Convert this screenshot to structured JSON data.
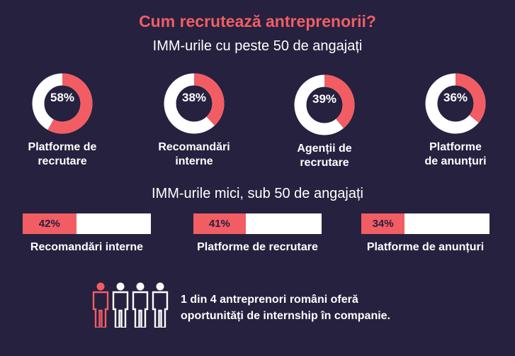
{
  "title": "Cum recrutează antreprenorii?",
  "section1": {
    "subtitle": "IMM-urile cu peste 50 de angajați",
    "items": [
      {
        "pct_label": "58%",
        "value": 58,
        "label_l1": "Platforme de",
        "label_l2": "recrutare"
      },
      {
        "pct_label": "38%",
        "value": 38,
        "label_l1": "Recomandări",
        "label_l2": "interne"
      },
      {
        "pct_label": "39%",
        "value": 39,
        "label_l1": "Agenții de",
        "label_l2": "recrutare"
      },
      {
        "pct_label": "36%",
        "value": 36,
        "label_l1": "Platforme",
        "label_l2": "de anunțuri"
      }
    ]
  },
  "section2": {
    "subtitle": "IMM-urile mici, sub 50 de angajați",
    "items": [
      {
        "pct_label": "42%",
        "value": 42,
        "label": "Recomandări interne"
      },
      {
        "pct_label": "41%",
        "value": 41,
        "label": "Platforme de recrutare"
      },
      {
        "pct_label": "34%",
        "value": 34,
        "label": "Platforme de anunțuri"
      }
    ]
  },
  "footer": {
    "line1": "1 din 4 antreprenori români oferă",
    "line2": "oportunități de internship în companie.",
    "people_total": 4,
    "people_highlighted": 1
  },
  "colors": {
    "background": "#25213f",
    "accent": "#f25d63",
    "white": "#ffffff"
  },
  "chart_data": [
    {
      "type": "pie",
      "subtitle": "IMM-urile cu peste 50 de angajați",
      "categories": [
        "Platforme de recrutare",
        "Recomandări interne",
        "Agenții de recrutare",
        "Platforme de anunțuri"
      ],
      "values": [
        58,
        38,
        39,
        36
      ],
      "unit": "%"
    },
    {
      "type": "bar",
      "subtitle": "IMM-urile mici, sub 50 de angajați",
      "categories": [
        "Recomandări interne",
        "Platforme de recrutare",
        "Platforme de anunțuri"
      ],
      "values": [
        42,
        41,
        34
      ],
      "unit": "%",
      "ylim": [
        0,
        100
      ]
    }
  ]
}
